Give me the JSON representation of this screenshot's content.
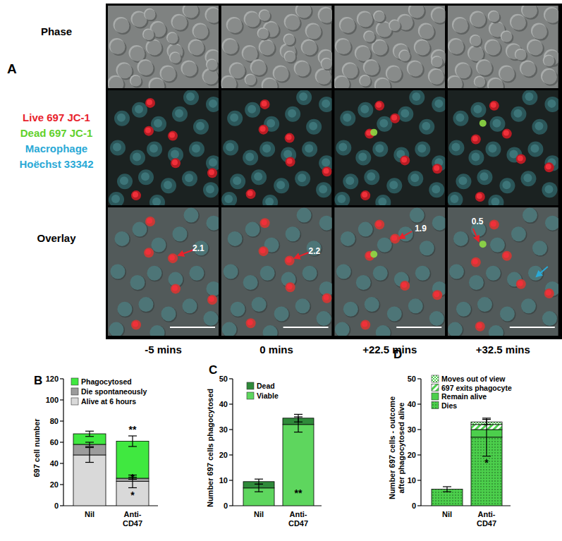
{
  "figure_a": {
    "label": "A",
    "rows": [
      {
        "title": [
          {
            "text": "Phase",
            "color": "#000000"
          }
        ]
      },
      {
        "title": [
          {
            "text": "Live 697 JC-1",
            "color": "#e8222b"
          },
          {
            "text": "Dead 697 JC-1",
            "color": "#5fd12a"
          },
          {
            "text": "Macrophage",
            "color": "#2aa9d6"
          },
          {
            "text": "Hoëchst 33342",
            "color": "#2aa9d6"
          }
        ]
      },
      {
        "title": [
          {
            "text": "Overlay",
            "color": "#000000"
          }
        ]
      }
    ],
    "columns": [
      "-5 mins",
      "0 mins",
      "+22.5 mins",
      "+32.5 mins"
    ],
    "annotations": [
      {
        "column": 0,
        "text": "2.1"
      },
      {
        "column": 1,
        "text": "2.2"
      },
      {
        "column": 2,
        "text": "1.9"
      },
      {
        "column": 3,
        "text": "0.5"
      }
    ]
  },
  "chart_data": [
    {
      "type": "bar",
      "stacked": true,
      "panel": "B",
      "ylabel": "697 cell number",
      "categories": [
        "Nil",
        "Anti-\nCD47"
      ],
      "ylim": [
        0,
        120
      ],
      "yticks": [
        0,
        20,
        40,
        60,
        80,
        100,
        120
      ],
      "legend": "top",
      "series": [
        {
          "name": "Alive at 6 hours",
          "color": "#d9d9d9",
          "values": [
            48,
            23
          ],
          "errors": [
            7,
            6
          ]
        },
        {
          "name": "Die spontaneously",
          "color": "#9c9c9c",
          "values": [
            10,
            3
          ],
          "errors": [
            2,
            1
          ]
        },
        {
          "name": "Phagocytosed",
          "color": "#40e840",
          "values": [
            10,
            35
          ],
          "errors": [
            2.5,
            5
          ]
        }
      ],
      "annotations": [
        {
          "text": "**",
          "x": 1,
          "y": 72
        },
        {
          "text": "*",
          "x": 1,
          "y": 27
        },
        {
          "text": "*",
          "x": 1,
          "y": 10
        }
      ]
    },
    {
      "type": "bar",
      "stacked": true,
      "panel": "C",
      "ylabel": "Number 697 cells phagocytosed",
      "categories": [
        "Nil",
        "Anti-\nCD47"
      ],
      "ylim": [
        0,
        50
      ],
      "yticks": [
        0,
        10,
        20,
        30,
        40,
        50
      ],
      "legend": "top",
      "series": [
        {
          "name": "Viable",
          "color": "#5ed65e",
          "values": [
            7,
            32
          ],
          "errors": [
            1.5,
            3
          ]
        },
        {
          "name": "Dead",
          "color": "#2f8a3a",
          "values": [
            2.5,
            2.5
          ],
          "errors": [
            1,
            1.5
          ]
        }
      ],
      "annotations": [
        {
          "text": "**",
          "x": 1,
          "y": 5
        }
      ]
    },
    {
      "type": "bar",
      "stacked": true,
      "panel": "D",
      "ylabel": "Number 697 cells - outcome\nafter phagocytosed alive",
      "categories": [
        "Nil",
        "Anti-\nCD47"
      ],
      "ylim": [
        0,
        50
      ],
      "yticks": [
        0,
        10,
        20,
        30,
        40,
        50
      ],
      "legend": "top",
      "series": [
        {
          "name": "Dies",
          "color": "#4ccf4c",
          "values": [
            6.5,
            27
          ],
          "errors": [
            1,
            7.5
          ]
        },
        {
          "name": "Remain alive",
          "color": "#4ccf4c",
          "values": [
            0,
            3
          ],
          "errors": [
            null,
            null
          ]
        },
        {
          "name": "697 exits phagocyte",
          "color": "#4ccf4c",
          "values": [
            0,
            2
          ],
          "errors": [
            null,
            null
          ]
        },
        {
          "name": "Moves out of view",
          "color": "#4ccf4c",
          "values": [
            0,
            1
          ],
          "errors": [
            null,
            1
          ]
        }
      ],
      "annotations": [
        {
          "text": "*",
          "x": 1,
          "y": 17
        }
      ]
    }
  ]
}
